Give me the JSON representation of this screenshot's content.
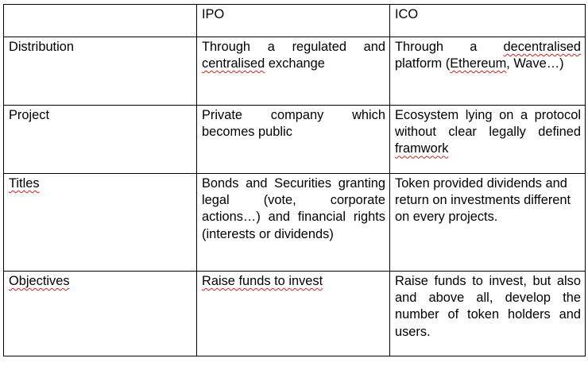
{
  "table": {
    "header": {
      "blank": "",
      "ipo": "IPO",
      "ico": "ICO"
    },
    "rows": [
      {
        "label": "Distribution",
        "ipo_a": "Through a regulated and ",
        "ipo_b": "centralised",
        "ipo_c": " exchange",
        "ico_a": "Through a ",
        "ico_b": "decentralised",
        "ico_c": " platform (",
        "ico_d": "Ethereum",
        "ico_e": ", Wave…)"
      },
      {
        "label": "Project",
        "ipo": "Private company which becomes public",
        "ico_a": "Ecosystem lying on a protocol without clear legally defined ",
        "ico_b": "framwork"
      },
      {
        "label": "Titles",
        "ipo": "Bonds and Securities granting legal (vote, corporate actions…) and financial rights (interests or dividends)",
        "ico": "Token provided dividends and return on investments different on every projects."
      },
      {
        "label": "Objectives",
        "ipo": "Raise funds to invest",
        "ico": "Raise funds to invest, but also and above all, develop the number of token holders and users."
      }
    ]
  }
}
